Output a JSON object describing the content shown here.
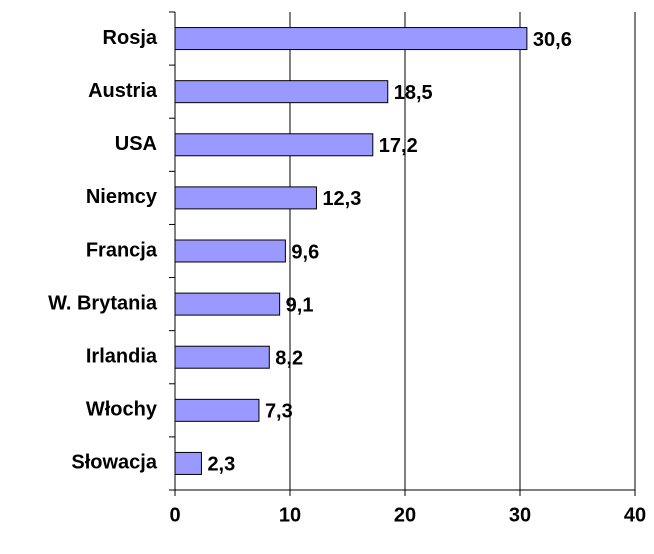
{
  "chart_data": {
    "type": "barh",
    "categories": [
      "Rosja",
      "Austria",
      "USA",
      "Niemcy",
      "Francja",
      "W. Brytania",
      "Irlandia",
      "Włochy",
      "Słowacja"
    ],
    "values": [
      30.6,
      18.5,
      17.2,
      12.3,
      9.6,
      9.1,
      8.2,
      7.3,
      2.3
    ],
    "value_labels": [
      "30,6",
      "18,5",
      "17,2",
      "12,3",
      "9,6",
      "9,1",
      "8,2",
      "7,3",
      "2,3"
    ],
    "color": "#9999ff",
    "xlim": [
      0,
      40
    ],
    "xticks": [
      0,
      10,
      20,
      30,
      40
    ],
    "grid": true
  }
}
